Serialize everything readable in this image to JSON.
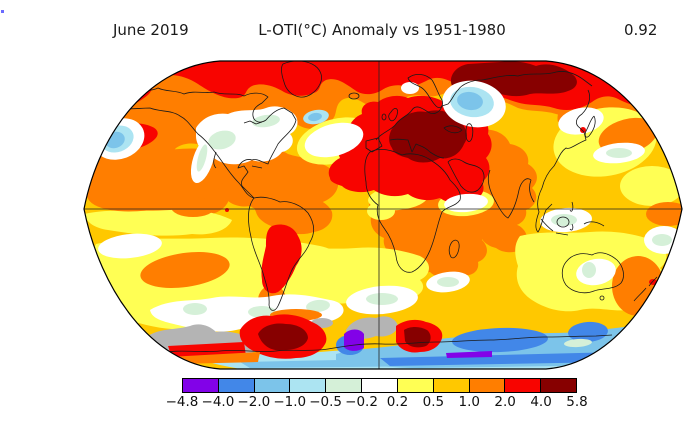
{
  "header": {
    "date_label": "June 2019",
    "title": "L-OTI(°C) Anomaly vs 1951-1980",
    "global_mean": "0.92"
  },
  "colorbar": {
    "tick_labels": [
      "−4.8",
      "−4.0",
      "−2.0",
      "−1.0",
      "−0.5",
      "−0.2",
      "0.2",
      "0.5",
      "1.0",
      "2.0",
      "4.0",
      "5.8"
    ],
    "segment_colors": [
      "#8202e8",
      "#4287e8",
      "#7cc4ea",
      "#ace4f2",
      "#d5f0d8",
      "#ffffff",
      "#ffff54",
      "#ffc800",
      "#ff7e00",
      "#f80400",
      "#870000"
    ],
    "no_data_color": "#b4b4b4",
    "border_color": "#000000"
  },
  "chart_data": {
    "type": "heatmap",
    "subtype": "global-temperature-anomaly-map",
    "title": "L-OTI(°C) Anomaly vs 1951-1980",
    "period": "June 2019",
    "global_mean_anomaly_c": 0.92,
    "units": "°C",
    "baseline": "1951-1980",
    "projection": "Robinson",
    "graticule": [
      "equator",
      "prime-meridian"
    ],
    "scale_boundaries_c": [
      -4.8,
      -4.0,
      -2.0,
      -1.0,
      -0.5,
      -0.2,
      0.2,
      0.5,
      1.0,
      2.0,
      4.0,
      5.8
    ],
    "scale_colors": [
      "#8202e8",
      "#4287e8",
      "#7cc4ea",
      "#ace4f2",
      "#d5f0d8",
      "#ffffff",
      "#ffff54",
      "#ffc800",
      "#ff7e00",
      "#f80400",
      "#870000"
    ],
    "no_data_color": "#b4b4b4",
    "legend_position": "bottom",
    "notable_features": [
      "+4 to +5.8 °C anomaly (dark red) over eastern Europe and north-central Siberia",
      "+2 to +4 °C (red) across the Arctic, Alaska/NW Canada, Greenland, Europe and Middle East",
      "+2 to +4 °C (red) over central South America (Argentina/southern Brazil)",
      "Near-normal (white, −0.2 to 0.2) band over central North America and the southern oceans",
      "Cool anomalies (−0.5 to −2) off western North America, western Siberia and around Antarctica",
      "−4 to −4.8 °C (purple) patches and gray no-data areas near Antarctica",
      "Warm +0.5 to +2 (gold/orange) anomalies over most remaining oceans and continents"
    ]
  }
}
